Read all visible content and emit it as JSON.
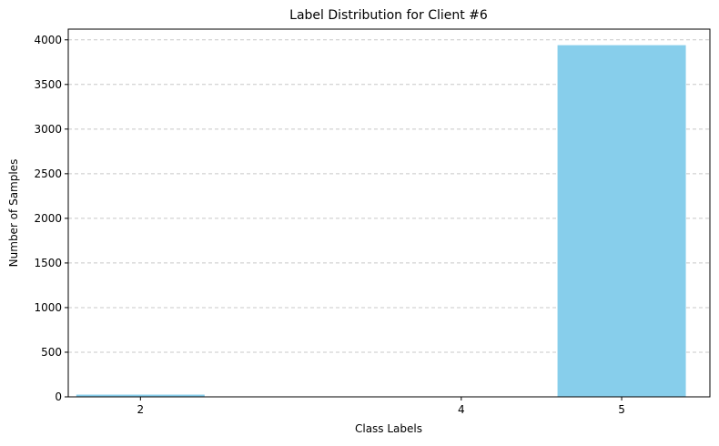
{
  "chart_data": {
    "type": "bar",
    "title": "Label Distribution for Client #6",
    "xlabel": "Class Labels",
    "ylabel": "Number of Samples",
    "categories": [
      2,
      4,
      5
    ],
    "values": [
      25,
      0,
      3940
    ],
    "ylim": [
      0,
      4120
    ],
    "xlim": [
      1.55,
      5.55
    ],
    "bar_width": 0.8,
    "yticks": [
      0,
      500,
      1000,
      1500,
      2000,
      2500,
      3000,
      3500,
      4000
    ],
    "xticks": [
      2,
      4,
      5
    ],
    "grid": "y-dashed",
    "bar_color": "#87ceeb"
  }
}
